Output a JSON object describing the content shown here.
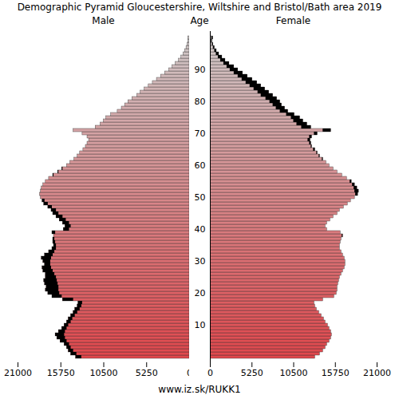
{
  "chart_data": {
    "type": "bar",
    "orientation": "horizontal",
    "title": "Demographic Pyramid Gloucestershire, Wiltshire and Bristol/Bath area 2019",
    "caption": "www.iz.sk/RUKK1",
    "y_label": "Age",
    "categories": [
      0,
      1,
      2,
      3,
      4,
      5,
      6,
      7,
      8,
      9,
      10,
      11,
      12,
      13,
      14,
      15,
      16,
      17,
      18,
      19,
      20,
      21,
      22,
      23,
      24,
      25,
      26,
      27,
      28,
      29,
      30,
      31,
      32,
      33,
      34,
      35,
      36,
      37,
      38,
      39,
      40,
      41,
      42,
      43,
      44,
      45,
      46,
      47,
      48,
      49,
      50,
      51,
      52,
      53,
      54,
      55,
      56,
      57,
      58,
      59,
      60,
      61,
      62,
      63,
      64,
      65,
      66,
      67,
      68,
      69,
      70,
      71,
      72,
      73,
      74,
      75,
      76,
      77,
      78,
      79,
      80,
      81,
      82,
      83,
      84,
      85,
      86,
      87,
      88,
      89,
      90,
      91,
      92,
      93,
      94,
      95,
      96,
      97,
      98,
      99,
      100
    ],
    "series": [
      {
        "name": "Male",
        "color": "#e0474c",
        "values": [
          13900,
          14500,
          14800,
          15000,
          15300,
          15800,
          16200,
          16400,
          16000,
          15600,
          15300,
          15000,
          14800,
          14500,
          14200,
          14000,
          13700,
          13600,
          15500,
          16800,
          17300,
          17600,
          17500,
          17700,
          17800,
          17600,
          17600,
          17900,
          18000,
          17700,
          17900,
          18100,
          17700,
          17200,
          16800,
          16600,
          16700,
          16700,
          16600,
          16800,
          15400,
          15200,
          15500,
          15900,
          16300,
          16700,
          16900,
          17300,
          17800,
          18000,
          18200,
          18300,
          18200,
          18100,
          17900,
          17600,
          17200,
          16700,
          16100,
          15600,
          15000,
          14600,
          14100,
          13700,
          13400,
          13000,
          12700,
          12500,
          12300,
          12500,
          13100,
          14200,
          11500,
          10900,
          10500,
          10200,
          9600,
          8800,
          8300,
          7900,
          7500,
          7000,
          6400,
          6000,
          5500,
          5000,
          4500,
          4000,
          3500,
          3000,
          2500,
          2100,
          1700,
          1300,
          1000,
          750,
          550,
          380,
          250,
          150,
          180
        ]
      },
      {
        "name": "Female",
        "color": "#e0474c",
        "values": [
          13200,
          13800,
          14200,
          14500,
          14700,
          15000,
          15200,
          15300,
          15200,
          15000,
          14800,
          14500,
          14300,
          14000,
          13700,
          13400,
          13200,
          13100,
          14200,
          15600,
          15900,
          16000,
          16000,
          16100,
          16200,
          16300,
          16500,
          16700,
          16900,
          17000,
          17000,
          16900,
          16700,
          16500,
          16300,
          16300,
          16400,
          16500,
          16700,
          16400,
          14700,
          14500,
          14700,
          15100,
          15500,
          16000,
          16300,
          16800,
          17300,
          17700,
          18200,
          18600,
          18700,
          18500,
          18200,
          17800,
          17200,
          16600,
          16000,
          15500,
          15000,
          14600,
          14200,
          13800,
          13500,
          13200,
          12800,
          12700,
          12600,
          12800,
          13500,
          15200,
          12700,
          12200,
          11700,
          11300,
          10600,
          9800,
          9400,
          9000,
          8800,
          8400,
          7900,
          7400,
          6900,
          6400,
          5900,
          5300,
          4700,
          4100,
          3500,
          3000,
          2400,
          1900,
          1500,
          1100,
          800,
          550,
          380,
          250,
          350
        ]
      }
    ],
    "xlim": [
      0,
      21000
    ],
    "xticks": [
      0,
      5250,
      10500,
      15750,
      21000
    ],
    "ylim": [
      0,
      100
    ],
    "yticks": [
      10,
      20,
      30,
      40,
      50,
      60,
      70,
      80,
      90
    ]
  }
}
